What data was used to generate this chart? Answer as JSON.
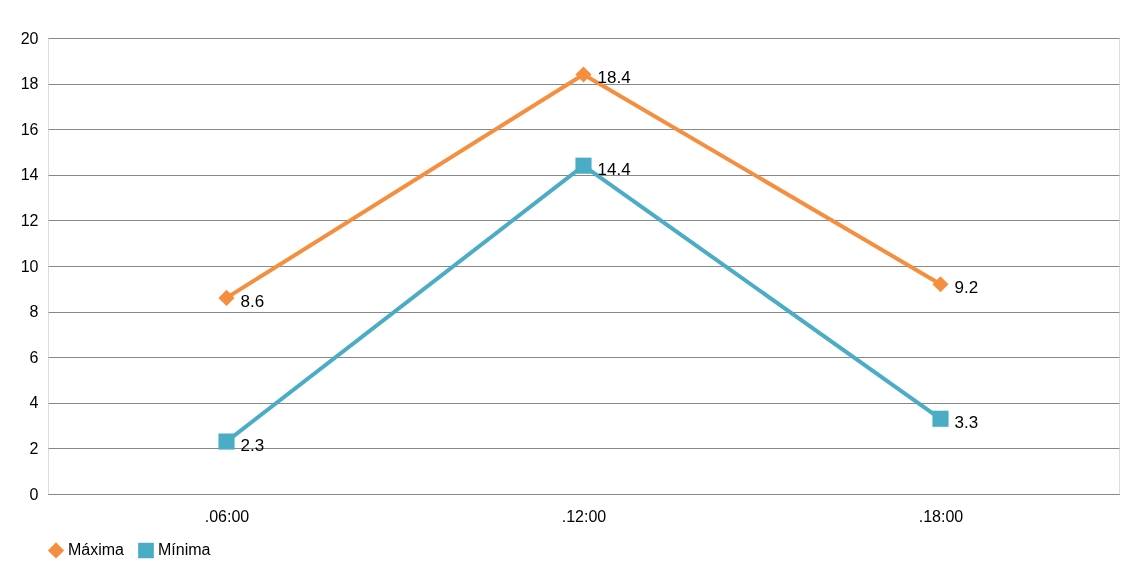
{
  "chart_data": {
    "type": "line",
    "categories": [
      ".06:00",
      ".12:00",
      ".18:00"
    ],
    "series": [
      {
        "name": "Máxima",
        "color": "#f58f3f",
        "marker": "diamond",
        "values": [
          8.6,
          18.4,
          9.2
        ]
      },
      {
        "name": "Mínima",
        "color": "#4bacc6",
        "marker": "square",
        "values": [
          2.3,
          14.4,
          3.3
        ]
      }
    ],
    "ylim": [
      0,
      20
    ],
    "yticks": [
      0,
      2,
      4,
      6,
      8,
      10,
      12,
      14,
      16,
      18,
      20
    ],
    "grid": "y",
    "legend": "bottom",
    "data_labels": true,
    "line_style": "solid"
  }
}
